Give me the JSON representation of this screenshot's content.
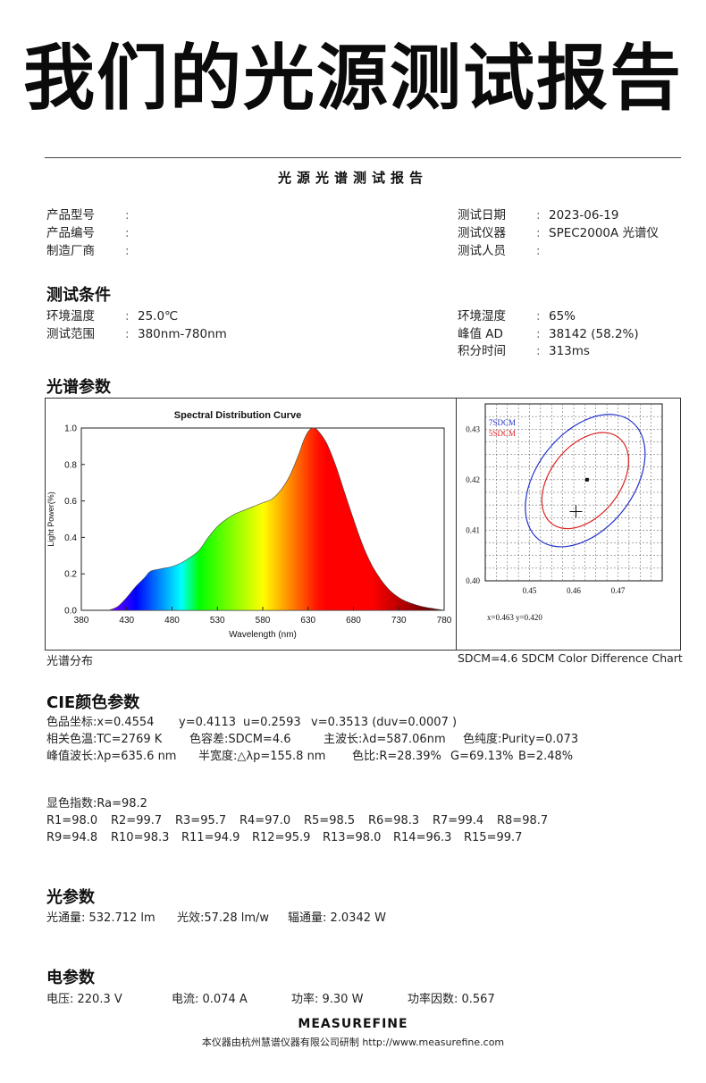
{
  "headline": "我们的光源测试报告",
  "report_title": "光源光谱测试报告",
  "info": {
    "left": [
      {
        "label": "产品型号",
        "sep": ":",
        "value": ""
      },
      {
        "label": "产品编号",
        "sep": ":",
        "value": ""
      },
      {
        "label": "制造厂商",
        "sep": ":",
        "value": ""
      }
    ],
    "right": [
      {
        "label": "测试日期",
        "sep": ":",
        "value": "2023-06-19"
      },
      {
        "label": "测试仪器",
        "sep": ":",
        "value": "SPEC2000A 光谱仪"
      },
      {
        "label": "测试人员",
        "sep": ":",
        "value": ""
      }
    ]
  },
  "conditions": {
    "heading": "测试条件",
    "left": [
      {
        "label": "环境温度",
        "sep": ":",
        "value": "25.0℃"
      },
      {
        "label": "测试范围",
        "sep": ":",
        "value": "380nm-780nm"
      }
    ],
    "right": [
      {
        "label": "环境湿度",
        "sep": ":",
        "value": "65%"
      },
      {
        "label": "峰值  AD",
        "sep": ":",
        "value": "38142 (58.2%)"
      },
      {
        "label": "积分时间",
        "sep": ":",
        "value": "313ms"
      }
    ]
  },
  "spectrum_heading": "光谱参数",
  "chart_data": [
    {
      "type": "area",
      "title": "Spectral Distribution Curve",
      "xlabel": "Wavelength (nm)",
      "ylabel": "Light Power(%)",
      "xlim": [
        380,
        780
      ],
      "ylim": [
        0,
        1.0
      ],
      "x_ticks": [
        "380",
        "430",
        "480",
        "530",
        "580",
        "630",
        "680",
        "730",
        "780"
      ],
      "y_ticks": [
        "0.0",
        "0.2",
        "0.4",
        "0.6",
        "0.8",
        "1.0"
      ],
      "grid": false,
      "x": [
        410,
        420,
        430,
        440,
        450,
        455,
        460,
        470,
        480,
        490,
        500,
        510,
        520,
        530,
        540,
        550,
        560,
        570,
        580,
        590,
        600,
        610,
        620,
        625,
        630,
        635,
        640,
        650,
        660,
        670,
        680,
        690,
        700,
        710,
        720,
        730,
        740,
        750,
        760,
        770,
        780
      ],
      "y": [
        0.0,
        0.02,
        0.07,
        0.13,
        0.18,
        0.21,
        0.22,
        0.23,
        0.24,
        0.26,
        0.29,
        0.33,
        0.4,
        0.46,
        0.5,
        0.53,
        0.55,
        0.57,
        0.59,
        0.61,
        0.66,
        0.74,
        0.86,
        0.93,
        0.98,
        1.0,
        0.99,
        0.92,
        0.8,
        0.65,
        0.5,
        0.36,
        0.25,
        0.17,
        0.11,
        0.07,
        0.045,
        0.028,
        0.016,
        0.008,
        0.0
      ]
    },
    {
      "type": "scatter",
      "xlim": [
        0.44,
        0.48
      ],
      "ylim": [
        0.4,
        0.435
      ],
      "x_ticks": [
        "0.45",
        "0.46",
        "0.47"
      ],
      "y_ticks": [
        "0.40",
        "0.41",
        "0.42",
        "0.43"
      ],
      "grid": true,
      "series": [
        {
          "name": "7SDCM",
          "color": "#2233cc"
        },
        {
          "name": "5SDCM",
          "color": "#dd2222"
        }
      ],
      "points": [
        {
          "x": 0.463,
          "y": 0.42,
          "marker": "square"
        },
        {
          "x": 0.4605,
          "y": 0.4137,
          "marker": "cross"
        }
      ],
      "readout": "x=0.463   y=0.420"
    }
  ],
  "captions": {
    "left": "光谱分布",
    "right": "SDCM=4.6  SDCM Color Difference Chart"
  },
  "cie": {
    "heading": "CIE颜色参数",
    "rows": [
      [
        "色品坐标:x=0.4554",
        "y=0.4113",
        "u=0.2593",
        "v=0.3513  (duv=0.0007 )"
      ],
      [
        "相关色温:TC=2769 K",
        "色容差:SDCM=4.6",
        "主波长:λd=587.06nm",
        "色纯度:Purity=0.073"
      ],
      [
        "峰值波长:λp=635.6 nm",
        "半宽度:△λp=155.8 nm",
        "色比:R=28.39%",
        "G=69.13%",
        "B=2.48%"
      ]
    ],
    "ra": "显色指数:Ra=98.2",
    "r_row1": [
      "R1=98.0",
      "R2=99.7",
      "R3=95.7",
      "R4=97.0",
      "R5=98.5",
      "R6=98.3",
      "R7=99.4",
      "R8=98.7"
    ],
    "r_row2": [
      "R9=94.8",
      "R10=98.3",
      "R11=94.9",
      "R12=95.9",
      "R13=98.0",
      "R14=96.3",
      "R15=99.7"
    ]
  },
  "light": {
    "heading": "光参数",
    "items": [
      "光通量: 532.712 lm",
      "光效:57.28 lm/w",
      "辐通量: 2.0342 W"
    ]
  },
  "electric": {
    "heading": "电参数",
    "items": [
      "电压: 220.3  V",
      "电流: 0.074  A",
      "功率: 9.30  W",
      "功率因数: 0.567"
    ]
  },
  "footer": {
    "brand": "MEASUREFINE",
    "note": "本仪器由杭州慧谱仪器有限公司研制 http://www.measurefine.com"
  }
}
